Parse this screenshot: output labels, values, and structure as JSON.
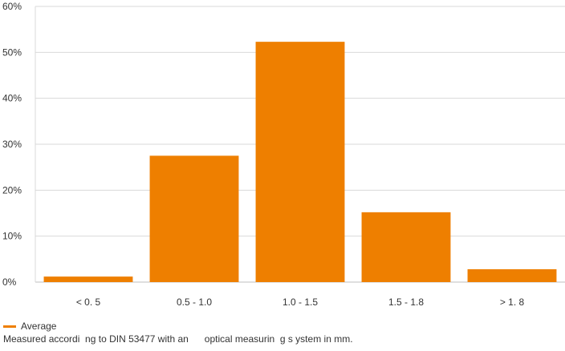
{
  "chart_data": {
    "type": "bar",
    "categories": [
      "< 0. 5",
      "0.5 - 1.0",
      "1.0 - 1.5",
      "1.5 - 1.8",
      "> 1. 8"
    ],
    "series": [
      {
        "name": "Average",
        "values": [
          1.2,
          27.5,
          52.3,
          15.2,
          2.8
        ]
      }
    ],
    "yticks": [
      "0%",
      "10%",
      "20%",
      "30%",
      "40%",
      "50%",
      "60%"
    ],
    "ylim": [
      0,
      60
    ],
    "grid": true,
    "legend_position": "bottom-left",
    "bar_color": "#EE7F00",
    "grid_color": "#d9d9d9",
    "title": "",
    "xlabel": "",
    "ylabel": ""
  },
  "legend": {
    "label": "Average"
  },
  "footnote": "Measured accordi  ng to DIN 53477 with an      optical measurin  g s ystem in mm."
}
